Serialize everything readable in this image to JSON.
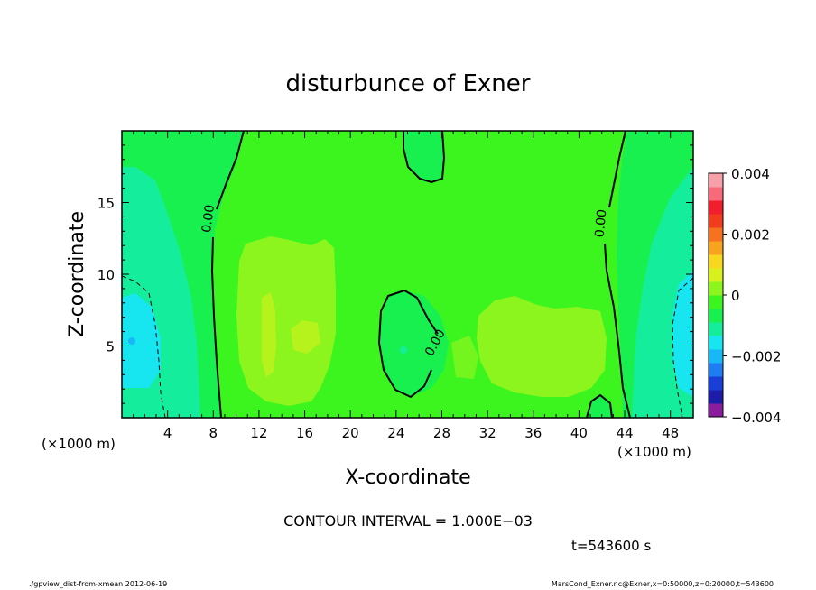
{
  "chart_data": {
    "type": "heatmap",
    "title": "disturbunce of Exner",
    "xlabel": "X-coordinate",
    "ylabel": "Z-coordinate",
    "x_unit_left": "(×1000 m)",
    "x_unit_right": "(×1000 m)",
    "xlim": [
      0,
      50
    ],
    "ylim": [
      0,
      20
    ],
    "x_ticks": [
      4,
      8,
      12,
      16,
      20,
      24,
      28,
      32,
      36,
      40,
      44,
      48
    ],
    "y_ticks": [
      5,
      10,
      15
    ],
    "colorbar": {
      "ticks": [
        0.004,
        0.002,
        0,
        -0.002,
        -0.004
      ],
      "tick_labels": [
        "0.004",
        "0.002",
        "0",
        "−0.002",
        "−0.004"
      ],
      "range": [
        -0.004,
        0.004
      ],
      "colors": [
        "#8a1c9e",
        "#1c1ca8",
        "#1a3fd6",
        "#1e7df0",
        "#17b8f5",
        "#17e5f0",
        "#14ee9c",
        "#18f050",
        "#3cf51e",
        "#8cf51e",
        "#d8f01e",
        "#f7d81e",
        "#f7a31e",
        "#f7721e",
        "#f23c1e",
        "#f21e2e",
        "#f76a7a",
        "#f7a0aa"
      ]
    },
    "contour_labels": [
      "0.00",
      "0.00",
      "0.00"
    ],
    "contour_interval_text": "CONTOUR INTERVAL = 1.000E−03",
    "time_text": "t=543600 s",
    "footer_left": "./gpview_dist-from-xmean  2012-06-19",
    "footer_right": "MarsCond_Exner.nc@Exner,x=0:50000,z=0:20000,t=543600"
  }
}
